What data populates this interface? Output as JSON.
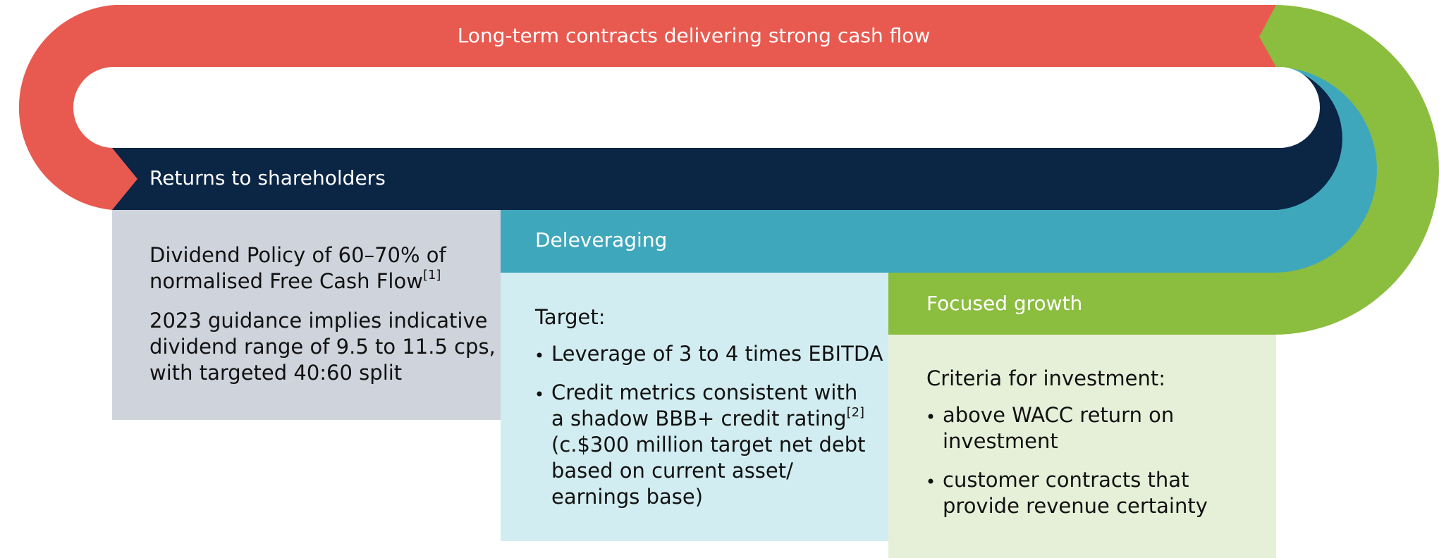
{
  "top_band": "Long-term contracts delivering strong cash flow",
  "columns": [
    {
      "title": "Returns to shareholders",
      "paragraphs": [
        {
          "lines": [
            "Dividend Policy of 60–70% of",
            {
              "text": "normalised Free Cash Flow",
              "note": "[1]"
            }
          ]
        },
        {
          "lines": [
            "2023 guidance implies indicative",
            "dividend range of 9.5 to 11.5 cps,",
            "with targeted 40:60 split"
          ]
        }
      ]
    },
    {
      "title": "Deleveraging",
      "intro": "Target:",
      "bullets": [
        {
          "lines": [
            "Leverage of 3 to 4 times EBITDA"
          ]
        },
        {
          "lines": [
            "Credit metrics consistent with",
            {
              "text": "a shadow BBB+ credit rating",
              "note": "[2]"
            },
            "(c.$300 million target net debt",
            "based on current asset/",
            "earnings base)"
          ]
        }
      ]
    },
    {
      "title": "Focused growth",
      "intro": "Criteria for investment:",
      "bullets": [
        {
          "lines": [
            "above WACC return on",
            "investment"
          ]
        },
        {
          "lines": [
            "customer contracts that",
            "provide revenue certainty"
          ]
        }
      ]
    }
  ]
}
